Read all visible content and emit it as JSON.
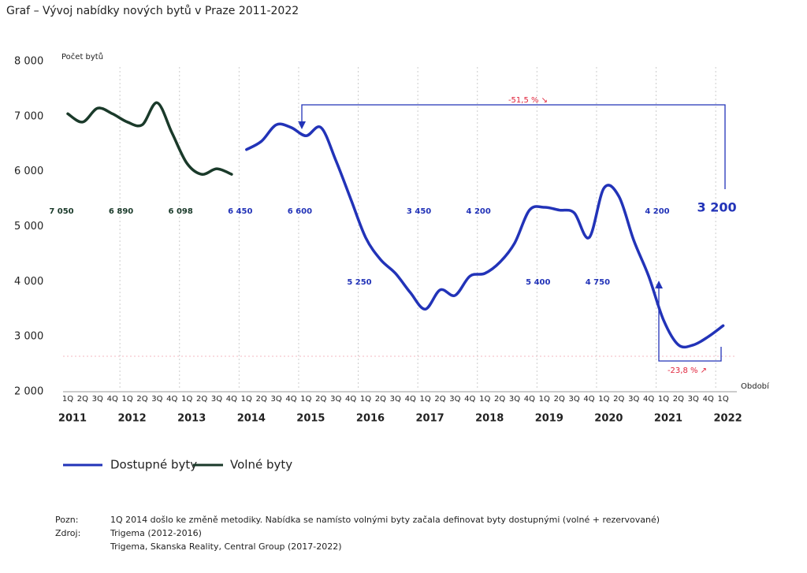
{
  "chart_data": {
    "type": "line",
    "title": "Graf – Vývoj nabídky nových bytů v Praze  2011-2022",
    "y_label": "Počet bytů",
    "x_label": "Období",
    "categories": [
      "1Q",
      "2Q",
      "3Q",
      "4Q",
      "1Q",
      "2Q",
      "3Q",
      "4Q",
      "1Q",
      "2Q",
      "3Q",
      "4Q",
      "1Q",
      "2Q",
      "3Q",
      "4Q",
      "1Q",
      "2Q",
      "3Q",
      "4Q",
      "1Q",
      "2Q",
      "3Q",
      "4Q",
      "1Q",
      "2Q",
      "3Q",
      "4Q",
      "1Q",
      "2Q",
      "3Q",
      "4Q",
      "1Q",
      "2Q",
      "3Q",
      "4Q",
      "1Q",
      "2Q",
      "3Q",
      "4Q",
      "1Q",
      "2Q",
      "3Q",
      "4Q",
      "1Q"
    ],
    "years": [
      "2011",
      "2012",
      "2013",
      "2014",
      "2015",
      "2016",
      "2017",
      "2018",
      "2019",
      "2020",
      "2021",
      "2022"
    ],
    "year_values": [
      "7 050",
      "6 890",
      "6 098",
      "6 450",
      "6 600",
      "5 250",
      "3 450",
      "4 200",
      "5 400",
      "4 750",
      "4 200",
      "3 200"
    ],
    "series": [
      {
        "name": "Dostupné byty",
        "color": "#2233b8",
        "values": [
          null,
          null,
          null,
          null,
          null,
          null,
          null,
          null,
          null,
          null,
          null,
          null,
          6400,
          6550,
          6850,
          6800,
          6650,
          6800,
          6200,
          5500,
          4800,
          4400,
          4150,
          3800,
          3500,
          3850,
          3750,
          4100,
          4150,
          4350,
          4700,
          5300,
          5350,
          5300,
          5250,
          4800,
          5700,
          5550,
          4750,
          4100,
          3300,
          2850,
          2850,
          3000,
          3200
        ]
      },
      {
        "name": "Volné byty",
        "color": "#1a3a2a",
        "values": [
          7050,
          6900,
          7150,
          7050,
          6900,
          6850,
          7250,
          6700,
          6150,
          5950,
          6050,
          5950,
          null,
          null,
          null,
          null,
          null,
          null,
          null,
          null,
          null,
          null,
          null,
          null,
          null,
          null,
          null,
          null,
          null,
          null,
          null,
          null,
          null,
          null,
          null,
          null,
          null,
          null,
          null,
          null,
          null,
          null,
          null,
          null,
          null
        ]
      }
    ],
    "ylim": [
      2000,
      8000
    ],
    "yticks": [
      {
        "value": 2000,
        "label": "2 000"
      },
      {
        "value": 3000,
        "label": "3 000"
      },
      {
        "value": 4000,
        "label": "4 000"
      },
      {
        "value": 5000,
        "label": "5 000"
      },
      {
        "value": 6000,
        "label": "6 000"
      },
      {
        "value": 7000,
        "label": "7 000"
      },
      {
        "value": 8000,
        "label": "8 000"
      }
    ],
    "annotations": [
      "-51,5 % ↘",
      "-23,8 % ↗"
    ],
    "notes": [
      {
        "label": "Pozn:",
        "text": "1Q 2014 došlo ke změně metodiky. Nabídka se namísto volnými byty začala definovat byty dostupnými (volné + rezervované)"
      },
      {
        "label": "Zdroj:",
        "text": "Trigema (2012-2016)"
      },
      {
        "text": "Trigema, Skanska Reality, Central Group (2017-2022)"
      }
    ]
  }
}
